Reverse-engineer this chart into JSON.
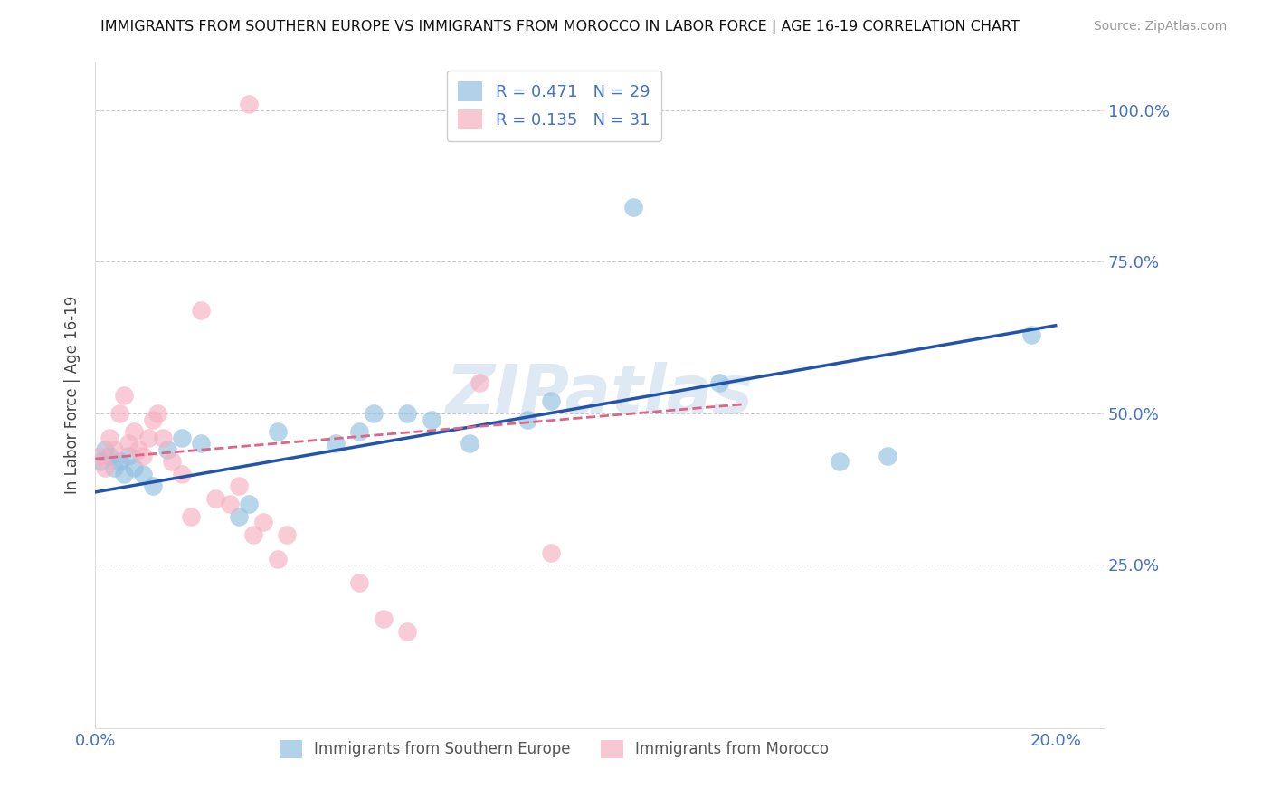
{
  "title": "IMMIGRANTS FROM SOUTHERN EUROPE VS IMMIGRANTS FROM MOROCCO IN LABOR FORCE | AGE 16-19 CORRELATION CHART",
  "source": "Source: ZipAtlas.com",
  "ylabel": "In Labor Force | Age 16-19",
  "xlim": [
    0.0,
    0.21
  ],
  "ylim": [
    -0.02,
    1.08
  ],
  "xticks": [
    0.0,
    0.05,
    0.1,
    0.15,
    0.2
  ],
  "xticklabels": [
    "0.0%",
    "",
    "",
    "",
    "20.0%"
  ],
  "yticks": [
    0.0,
    0.25,
    0.5,
    0.75,
    1.0
  ],
  "yticklabels_right": [
    "",
    "25.0%",
    "50.0%",
    "75.0%",
    "100.0%"
  ],
  "blue_R": 0.471,
  "blue_N": 29,
  "pink_R": 0.135,
  "pink_N": 31,
  "blue_color": "#92c0e0",
  "pink_color": "#f5b0c0",
  "blue_line_color": "#2255aa",
  "pink_line_color": "#dd6688",
  "watermark": "ZIPatlas",
  "blue_line": [
    [
      0.0,
      0.37
    ],
    [
      0.2,
      0.645
    ]
  ],
  "pink_line": [
    [
      0.0,
      0.425
    ],
    [
      0.135,
      0.515
    ]
  ],
  "blue_points_x": [
    0.001,
    0.002,
    0.003,
    0.004,
    0.005,
    0.006,
    0.007,
    0.008,
    0.01,
    0.012,
    0.015,
    0.018,
    0.022,
    0.03,
    0.032,
    0.038,
    0.05,
    0.055,
    0.058,
    0.065,
    0.07,
    0.078,
    0.09,
    0.095,
    0.112,
    0.13,
    0.155,
    0.165,
    0.195
  ],
  "blue_points_y": [
    0.42,
    0.44,
    0.43,
    0.41,
    0.42,
    0.4,
    0.43,
    0.41,
    0.4,
    0.38,
    0.44,
    0.46,
    0.45,
    0.33,
    0.35,
    0.47,
    0.45,
    0.47,
    0.5,
    0.5,
    0.49,
    0.45,
    0.49,
    0.52,
    0.84,
    0.55,
    0.42,
    0.43,
    0.63
  ],
  "pink_points_x": [
    0.001,
    0.002,
    0.003,
    0.004,
    0.005,
    0.006,
    0.007,
    0.008,
    0.009,
    0.01,
    0.011,
    0.012,
    0.013,
    0.014,
    0.016,
    0.018,
    0.02,
    0.022,
    0.025,
    0.028,
    0.03,
    0.033,
    0.035,
    0.038,
    0.04,
    0.055,
    0.06,
    0.065,
    0.08,
    0.095,
    0.032
  ],
  "pink_points_y": [
    0.43,
    0.41,
    0.46,
    0.44,
    0.5,
    0.53,
    0.45,
    0.47,
    0.44,
    0.43,
    0.46,
    0.49,
    0.5,
    0.46,
    0.42,
    0.4,
    0.33,
    0.67,
    0.36,
    0.35,
    0.38,
    0.3,
    0.32,
    0.26,
    0.3,
    0.22,
    0.16,
    0.14,
    0.55,
    0.27,
    1.01
  ]
}
